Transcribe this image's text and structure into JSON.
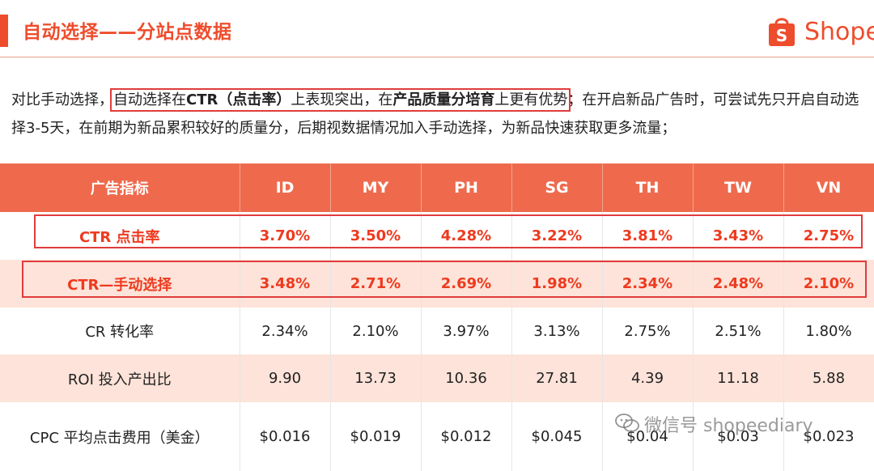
{
  "header": {
    "title": "自动选择——分站点数据",
    "logo_text": "Shope",
    "accent_color": "#ee4d2d"
  },
  "intro": {
    "part1": "对比手动选择，",
    "box_a": "自动选择在",
    "box_b": "CTR（点击率）",
    "box_c": "上表现突出，在",
    "box_d": "产品质量分培育",
    "box_e": "上更有优势",
    "part2": "；在开启新品广告时，可尝试先只开启自动选择3-5天，在前期为新品累积较好的质量分，后期视数据情况加入手动选择，为新品快速获取更多流量；"
  },
  "table": {
    "headers": [
      "广告指标",
      "ID",
      "MY",
      "PH",
      "SG",
      "TH",
      "TW",
      "VN"
    ],
    "rows": [
      {
        "label": "CTR 点击率",
        "values": [
          "3.70%",
          "3.50%",
          "4.28%",
          "3.22%",
          "3.81%",
          "3.43%",
          "2.75%"
        ]
      },
      {
        "label": "CTR—手动选择",
        "values": [
          "3.48%",
          "2.71%",
          "2.69%",
          "1.98%",
          "2.34%",
          "2.48%",
          "2.10%"
        ]
      },
      {
        "label": "CR 转化率",
        "values": [
          "2.34%",
          "2.10%",
          "3.97%",
          "3.13%",
          "2.75%",
          "2.51%",
          "1.80%"
        ]
      },
      {
        "label": "ROI 投入产出比",
        "values": [
          "9.90",
          "13.73",
          "10.36",
          "27.81",
          "4.39",
          "11.18",
          "5.88"
        ]
      },
      {
        "label": "CPC 平均点击费用（美金）",
        "values": [
          "$0.016",
          "$0.019",
          "$0.012",
          "$0.045",
          "$0.04",
          "$0.03",
          "$0.023"
        ]
      }
    ]
  },
  "watermark": {
    "text": "微信号 shopeediary"
  }
}
